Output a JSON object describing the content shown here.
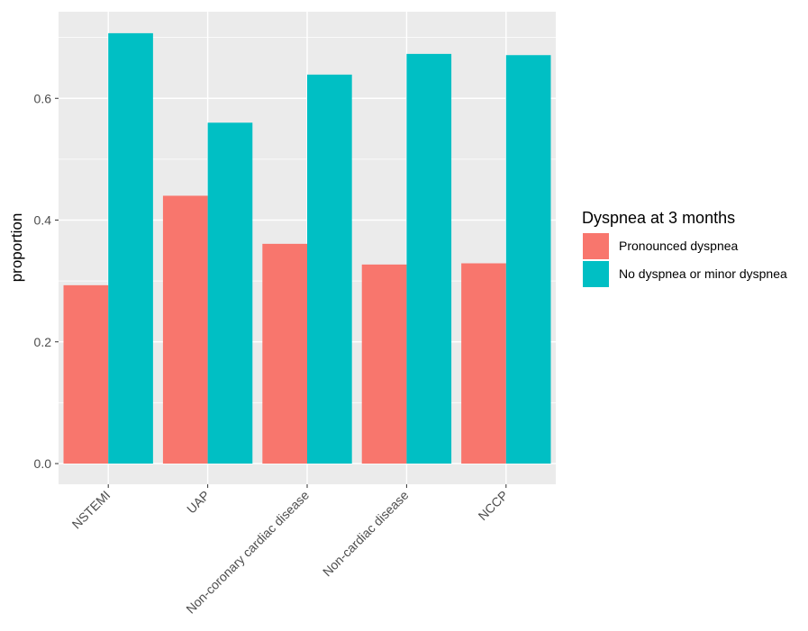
{
  "chart_data": {
    "type": "bar",
    "title": "",
    "xlabel": "",
    "ylabel": "proportion",
    "ylim": [
      0,
      0.73
    ],
    "yticks": [
      0.0,
      0.2,
      0.4,
      0.6
    ],
    "ytick_labels": [
      "0.0",
      "0.2",
      "0.4",
      "0.6"
    ],
    "grid": true,
    "background": "#ebebeb",
    "legend": {
      "title": "Dyspnea at 3 months",
      "placement": "right"
    },
    "categories": [
      "NSTEMI",
      "UAP",
      "Non-coronary cardiac disease",
      "Non-cardiac disease",
      "NCCP"
    ],
    "series": [
      {
        "name": "Pronounced dyspnea",
        "color": "#f8766d",
        "values": [
          0.293,
          0.44,
          0.361,
          0.327,
          0.329
        ]
      },
      {
        "name": "No dyspnea or minor dyspnea",
        "color": "#00bfc4",
        "values": [
          0.707,
          0.56,
          0.639,
          0.673,
          0.671
        ]
      }
    ]
  }
}
